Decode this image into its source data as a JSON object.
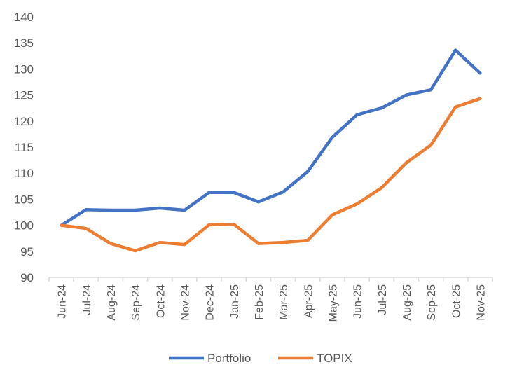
{
  "chart_data": {
    "type": "line",
    "title": "",
    "xlabel": "",
    "ylabel": "",
    "ylim": [
      90,
      140
    ],
    "yticks": [
      90,
      95,
      100,
      105,
      110,
      115,
      120,
      125,
      130,
      135,
      140
    ],
    "grid": false,
    "legend_position": "bottom",
    "categories": [
      "Jun-24",
      "Jul-24",
      "Aug-24",
      "Sep-24",
      "Oct-24",
      "Nov-24",
      "Dec-24",
      "Jan-25",
      "Feb-25",
      "Mar-25",
      "Apr-25",
      "May-25",
      "Jun-25",
      "Jul-25",
      "Aug-25",
      "Sep-25",
      "Oct-25",
      "Nov-25"
    ],
    "series": [
      {
        "name": "Portfolio",
        "color": "#4472C4",
        "values": [
          100,
          103.0,
          102.9,
          102.9,
          103.3,
          102.9,
          106.3,
          106.3,
          104.5,
          106.4,
          110.3,
          116.9,
          121.2,
          122.5,
          125.0,
          126.0,
          133.6,
          129.2
        ]
      },
      {
        "name": "TOPIX",
        "color": "#ED7D31",
        "values": [
          100,
          99.4,
          96.5,
          95.1,
          96.7,
          96.3,
          100.1,
          100.2,
          96.5,
          96.7,
          97.1,
          102.0,
          104.1,
          107.2,
          112.0,
          115.4,
          122.7,
          124.3
        ]
      }
    ]
  }
}
